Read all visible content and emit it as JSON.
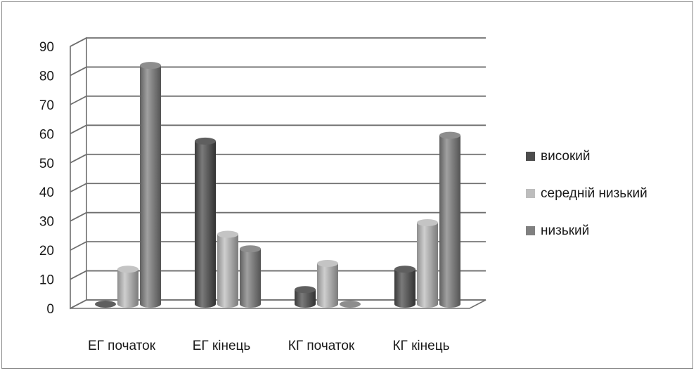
{
  "chart_data": {
    "type": "bar",
    "categories": [
      "ЕГ початок",
      "ЕГ кінець",
      "КГ початок",
      "КГ кінець"
    ],
    "series": [
      {
        "name": "високий",
        "values": [
          0,
          56,
          5,
          12
        ],
        "color": "#4d4d4d"
      },
      {
        "name": "середній низький",
        "values": [
          12,
          24,
          14,
          28
        ],
        "color": "#bdbdbd"
      },
      {
        "name": "низький",
        "values": [
          82,
          19,
          0,
          58
        ],
        "color": "#808080"
      }
    ],
    "ylim": [
      0,
      90
    ],
    "yticks": [
      "0",
      "10",
      "20",
      "30",
      "40",
      "50",
      "60",
      "70",
      "80",
      "90"
    ],
    "grid": true,
    "legend_position": "right",
    "style": "3d-cylinder"
  }
}
